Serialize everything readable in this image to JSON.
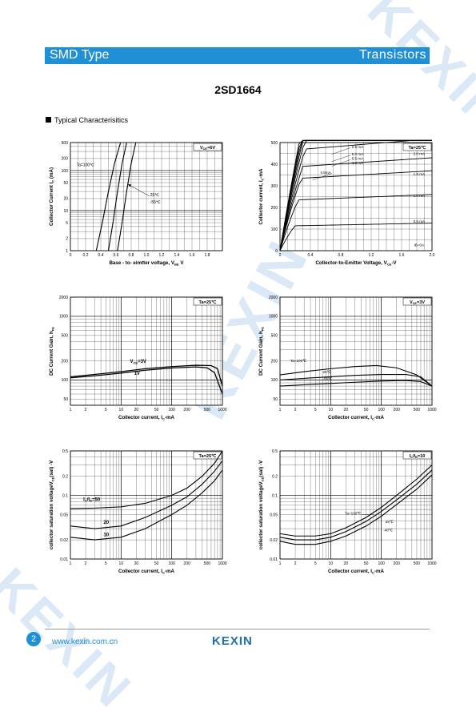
{
  "header": {
    "left": "SMD Type",
    "right": "Transistors"
  },
  "part_number": "2SD1664",
  "section_title": "Typical  Characterisitics",
  "footer": {
    "page": "2",
    "url": "www.kexin.com.cn",
    "brand": "KEXIN"
  },
  "colors": {
    "accent": "#1f8fd6",
    "watermark": "#dbe9f6"
  },
  "chart_data": [
    {
      "type": "line",
      "ylog": true,
      "xlabel": "Base - to- eimtter voltage, V",
      "xlabel_sub": "BE",
      "xlabel_unit": " V",
      "ylabel": "Collector  Current  I",
      "ylabel_sub": "C",
      "ylabel_unit": " (mA)",
      "xlim": [
        0,
        2.0
      ],
      "ylim": [
        1,
        500
      ],
      "xticks": [
        "0",
        "0.2",
        "0.4",
        "0.6",
        "0.8",
        "1.0",
        "1.2",
        "1.4",
        "1.6",
        "1.8"
      ],
      "xtick_values": [
        0,
        0.2,
        0.4,
        0.6,
        0.8,
        1.0,
        1.2,
        1.4,
        1.6,
        1.8
      ],
      "yticks": [
        "1",
        "2",
        "5",
        "10",
        "20",
        "50",
        "100",
        "200",
        "500"
      ],
      "ytick_values": [
        1,
        2,
        5,
        10,
        20,
        50,
        100,
        200,
        500
      ],
      "boxed_condition": {
        "main": "V",
        "sub": "CE",
        "rest": "=6V"
      },
      "annotations": [
        "Ta=100℃",
        "25℃",
        "-55℃"
      ],
      "series": [
        {
          "name": "Ta=100℃",
          "x": [
            0.34,
            0.42,
            0.5,
            0.58,
            0.66
          ],
          "y": [
            1,
            5,
            30,
            150,
            500
          ]
        },
        {
          "name": "25℃",
          "x": [
            0.5,
            0.56,
            0.62,
            0.68,
            0.74
          ],
          "y": [
            1,
            5,
            30,
            150,
            500
          ]
        },
        {
          "name": "-55℃",
          "x": [
            0.62,
            0.68,
            0.74,
            0.8,
            0.86
          ],
          "y": [
            1,
            5,
            30,
            150,
            500
          ]
        }
      ]
    },
    {
      "type": "line",
      "xlabel": "Collector-to-Emitter Voltage, V",
      "xlabel_sub": "CE",
      "xlabel_unit": "-V",
      "ylabel": "Collector current, I",
      "ylabel_sub": "C",
      "ylabel_unit": "-mA",
      "xlim": [
        0,
        2.0
      ],
      "ylim": [
        0,
        500
      ],
      "xticks": [
        "0",
        "0.4",
        "0.8",
        "1.2",
        "1.6",
        "2.0"
      ],
      "xtick_values": [
        0,
        0.4,
        0.8,
        1.2,
        1.6,
        2.0
      ],
      "yticks": [
        "0",
        "100",
        "200",
        "300",
        "400",
        "500"
      ],
      "ytick_values": [
        0,
        100,
        200,
        300,
        400,
        500
      ],
      "boxed_condition": {
        "main": "Ta=25℃",
        "sub": "",
        "rest": ""
      },
      "annotations": [
        "2.5 mA",
        "5.0 mA",
        "5.5 mA",
        "4.5mA",
        "4.0 mA",
        "2.0 mA",
        "1.5 mA",
        "1.0 mA",
        "0.5 mA",
        "IB=0A"
      ],
      "series": [
        {
          "name": "0.5 mA",
          "sat": 115
        },
        {
          "name": "1.0 mA",
          "sat": 235
        },
        {
          "name": "1.5 mA",
          "sat": 335
        },
        {
          "name": "2.0 mA",
          "sat": 390
        },
        {
          "name": "2.5 mA",
          "sat": 470
        },
        {
          "name": "",
          "sat": 560
        },
        {
          "name": "",
          "sat": 640
        },
        {
          "name": "",
          "sat": 720
        },
        {
          "name": "",
          "sat": 800
        },
        {
          "name": "",
          "sat": 880
        }
      ]
    },
    {
      "type": "line",
      "xlog": true,
      "ylog": true,
      "xlabel": "Collector current, I",
      "xlabel_sub": "C",
      "xlabel_unit": "-mA",
      "ylabel": "DC Current Gain, h",
      "ylabel_sub": "FE",
      "ylabel_unit": "",
      "xlim": [
        1,
        1000
      ],
      "ylim": [
        40,
        2000
      ],
      "xticks": [
        "1",
        "2",
        "5",
        "10",
        "20",
        "50",
        "100",
        "200",
        "500",
        "1000"
      ],
      "xtick_values": [
        1,
        2,
        5,
        10,
        20,
        50,
        100,
        200,
        500,
        1000
      ],
      "yticks": [
        "50",
        "100",
        "200",
        "500",
        "1000",
        "2000"
      ],
      "ytick_values": [
        50,
        100,
        200,
        500,
        1000,
        2000
      ],
      "boxed_condition": {
        "main": "Ta=25℃",
        "sub": "",
        "rest": ""
      },
      "annotations": [
        "V",
        "CE",
        "=3V",
        "1V"
      ],
      "series": [
        {
          "name": "VCE=3V",
          "x": [
            1,
            3,
            10,
            30,
            100,
            300,
            600,
            800,
            1000
          ],
          "y": [
            112,
            122,
            135,
            150,
            162,
            170,
            168,
            150,
            80
          ]
        },
        {
          "name": "1V",
          "x": [
            1,
            3,
            10,
            30,
            100,
            300,
            500,
            700,
            1000
          ],
          "y": [
            108,
            116,
            128,
            142,
            154,
            160,
            155,
            130,
            60
          ]
        }
      ]
    },
    {
      "type": "line",
      "xlog": true,
      "ylog": true,
      "xlabel": "Collector current, I",
      "xlabel_sub": "C",
      "xlabel_unit": "-mA",
      "ylabel": "DC Current Gain, h",
      "ylabel_sub": "FE",
      "ylabel_unit": "",
      "xlim": [
        1,
        1000
      ],
      "ylim": [
        40,
        2000
      ],
      "xticks": [
        "1",
        "2",
        "5",
        "10",
        "20",
        "50",
        "100",
        "200",
        "500",
        "1000"
      ],
      "xtick_values": [
        1,
        2,
        5,
        10,
        20,
        50,
        100,
        200,
        500,
        1000
      ],
      "yticks": [
        "50",
        "100",
        "200",
        "500",
        "1000",
        "2000"
      ],
      "ytick_values": [
        50,
        100,
        200,
        500,
        1000,
        2000
      ],
      "boxed_condition": {
        "main": "V",
        "sub": "CE",
        "rest": "=3V"
      },
      "annotations": [
        "Ta=100℃",
        "25℃",
        "-55℃"
      ],
      "series": [
        {
          "name": "Ta=100℃",
          "x": [
            1,
            3,
            10,
            30,
            80,
            200,
            500,
            1000
          ],
          "y": [
            120,
            135,
            150,
            162,
            168,
            155,
            120,
            80
          ]
        },
        {
          "name": "25℃",
          "x": [
            1,
            3,
            10,
            30,
            100,
            300,
            600,
            1000
          ],
          "y": [
            100,
            106,
            112,
            118,
            122,
            122,
            112,
            80
          ]
        },
        {
          "name": "-55℃",
          "x": [
            1,
            3,
            10,
            30,
            100,
            300,
            600,
            1000
          ],
          "y": [
            80,
            84,
            88,
            92,
            96,
            98,
            94,
            80
          ]
        }
      ]
    },
    {
      "type": "line",
      "xlog": true,
      "ylog": true,
      "xlabel": "Collector current, I",
      "xlabel_sub": "C",
      "xlabel_unit": "-mA",
      "ylabel": "collector saturation voltageV",
      "ylabel_sub": "CE",
      "ylabel_unit": "(sat) -V",
      "xlim": [
        1,
        1000
      ],
      "ylim": [
        0.01,
        0.5
      ],
      "xticks": [
        "1",
        "2",
        "5",
        "10",
        "20",
        "50",
        "100",
        "200",
        "500",
        "1000"
      ],
      "xtick_values": [
        1,
        2,
        5,
        10,
        20,
        50,
        100,
        200,
        500,
        1000
      ],
      "yticks": [
        "0.01",
        "0.02",
        "0.05",
        "0.1",
        "0.2",
        "0.5"
      ],
      "ytick_values": [
        0.01,
        0.02,
        0.05,
        0.1,
        0.2,
        0.5
      ],
      "boxed_condition": {
        "main": "Ta=25℃",
        "sub": "",
        "rest": ""
      },
      "annotations": [
        "I",
        "C",
        "/I",
        "B",
        "=50",
        "20",
        "10"
      ],
      "series": [
        {
          "name": "IC/IB=50",
          "x": [
            1,
            3,
            10,
            30,
            100,
            200,
            400,
            700,
            1000
          ],
          "y": [
            0.062,
            0.063,
            0.066,
            0.075,
            0.1,
            0.13,
            0.2,
            0.32,
            0.5
          ]
        },
        {
          "name": "20",
          "x": [
            1,
            3,
            10,
            30,
            100,
            200,
            400,
            700,
            1000
          ],
          "y": [
            0.033,
            0.03,
            0.033,
            0.045,
            0.07,
            0.095,
            0.15,
            0.24,
            0.35
          ]
        },
        {
          "name": "10",
          "x": [
            1,
            3,
            10,
            30,
            100,
            200,
            400,
            700,
            1000
          ],
          "y": [
            0.022,
            0.02,
            0.022,
            0.03,
            0.05,
            0.07,
            0.11,
            0.17,
            0.25
          ]
        }
      ]
    },
    {
      "type": "line",
      "xlog": true,
      "ylog": true,
      "xlabel": "Collector current, I",
      "xlabel_sub": "C",
      "xlabel_unit": "-mA",
      "ylabel": "collector saturation voltageV",
      "ylabel_sub": "CE",
      "ylabel_unit": "(sat) -V",
      "xlim": [
        1,
        1000
      ],
      "ylim": [
        0.01,
        0.5
      ],
      "xticks": [
        "1",
        "2",
        "5",
        "10",
        "20",
        "50",
        "100",
        "200",
        "500",
        "1000"
      ],
      "xtick_values": [
        1,
        2,
        5,
        10,
        20,
        50,
        100,
        200,
        500,
        1000
      ],
      "yticks": [
        "0.01",
        "0.02",
        "0.05",
        "0.1",
        "0.2",
        "0.5"
      ],
      "ytick_values": [
        0.01,
        0.02,
        0.05,
        0.1,
        0.2,
        0.5
      ],
      "boxed_condition": {
        "main": "I",
        "sub": "C",
        "rest": "/I",
        "sub2": "B",
        "rest2": "=10"
      },
      "annotations": [
        "Ta=100℃",
        "25℃",
        "-40℃"
      ],
      "series": [
        {
          "name": "Ta=100℃",
          "x": [
            1,
            2,
            5,
            10,
            20,
            50,
            100,
            200,
            500,
            1000
          ],
          "y": [
            0.025,
            0.023,
            0.023,
            0.025,
            0.031,
            0.045,
            0.065,
            0.1,
            0.18,
            0.3
          ]
        },
        {
          "name": "25℃",
          "x": [
            1,
            2,
            5,
            10,
            20,
            50,
            100,
            200,
            500,
            1000
          ],
          "y": [
            0.022,
            0.02,
            0.02,
            0.022,
            0.027,
            0.039,
            0.056,
            0.085,
            0.15,
            0.25
          ]
        },
        {
          "name": "-40℃",
          "x": [
            1,
            2,
            5,
            10,
            20,
            50,
            100,
            200,
            500,
            1000
          ],
          "y": [
            0.019,
            0.017,
            0.017,
            0.019,
            0.023,
            0.033,
            0.047,
            0.072,
            0.125,
            0.21
          ]
        }
      ]
    }
  ]
}
